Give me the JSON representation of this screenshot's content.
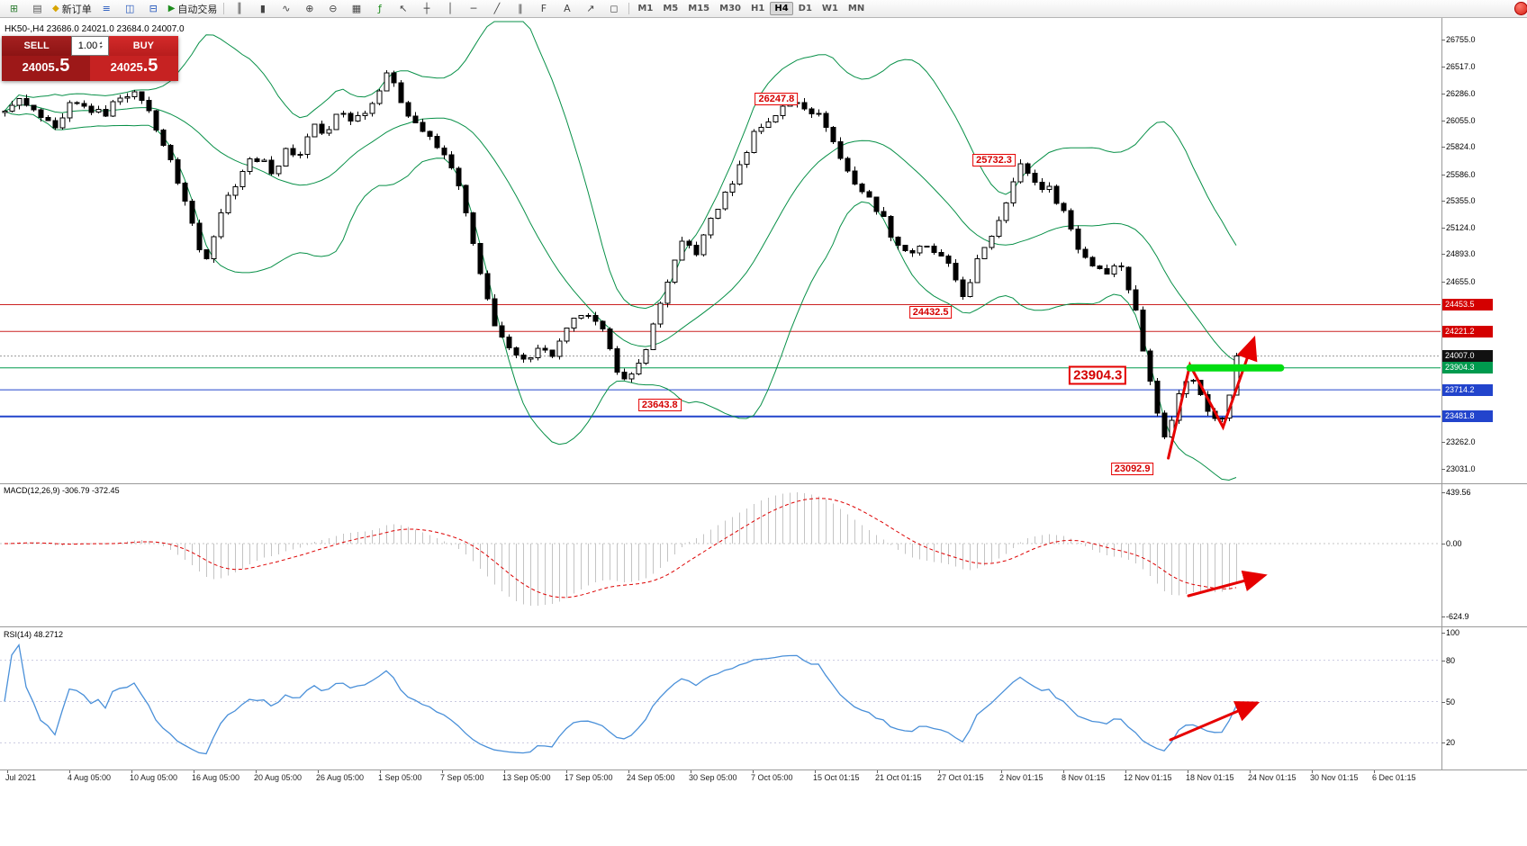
{
  "toolbar": {
    "left_icons": [
      {
        "name": "new-chart",
        "glyph": "⊞",
        "color": "#2e7d32"
      },
      {
        "name": "chart-profiles",
        "glyph": "▤",
        "color": "#555555"
      }
    ],
    "new_order_label": "新订单",
    "new_order_icon_glyph": "◆",
    "mid_icons": [
      {
        "name": "market-watch",
        "glyph": "≡",
        "color": "#2255bb"
      },
      {
        "name": "data-window",
        "glyph": "◫",
        "color": "#2255bb"
      },
      {
        "name": "navigator",
        "glyph": "⊟",
        "color": "#2255bb"
      }
    ],
    "auto_trading_label": "自动交易",
    "auto_trading_icon_glyph": "▶",
    "right_icons": [
      {
        "name": "bar-chart-mode",
        "glyph": "║",
        "color": "#444444"
      },
      {
        "name": "candlestick-mode",
        "glyph": "▮",
        "color": "#444444"
      },
      {
        "name": "line-chart-mode",
        "glyph": "∿",
        "color": "#444444"
      },
      {
        "name": "zoom-in",
        "glyph": "⊕",
        "color": "#444444"
      },
      {
        "name": "zoom-out",
        "glyph": "⊖",
        "color": "#444444"
      },
      {
        "name": "tile-windows",
        "glyph": "▦",
        "color": "#444444"
      },
      {
        "name": "indicators-list",
        "glyph": "ƒ",
        "color": "#1c8c1c"
      },
      {
        "name": "cursor-tool",
        "glyph": "↖",
        "color": "#444444"
      },
      {
        "name": "crosshair-tool",
        "glyph": "┼",
        "color": "#444444"
      },
      {
        "name": "vertical-line-tool",
        "glyph": "│",
        "color": "#444444"
      },
      {
        "name": "horizontal-line-tool",
        "glyph": "─",
        "color": "#444444"
      },
      {
        "name": "trendline-tool",
        "glyph": "╱",
        "color": "#444444"
      },
      {
        "name": "channel-tool",
        "glyph": "∥",
        "color": "#444444"
      },
      {
        "name": "fibonacci-tool",
        "glyph": "F",
        "color": "#444444"
      },
      {
        "name": "text-tool",
        "glyph": "A",
        "color": "#444444"
      },
      {
        "name": "arrow-tool",
        "glyph": "↗",
        "color": "#444444"
      },
      {
        "name": "shapes-tool",
        "glyph": "◻",
        "color": "#444444"
      }
    ],
    "timeframes": [
      "M1",
      "M5",
      "M15",
      "M30",
      "H1",
      "H4",
      "D1",
      "W1",
      "MN"
    ],
    "active_timeframe": "H4"
  },
  "trade_panel": {
    "sell_label": "SELL",
    "buy_label": "BUY",
    "volume": "1.00",
    "sell_price": "24005",
    "sell_price_big": ".5",
    "buy_price": "24025",
    "buy_price_big": ".5"
  },
  "chart_header": "HK50-,H4  23686.0 24021.0 23684.0 24007.0",
  "chart_data": [
    {
      "type": "candlestick",
      "symbol": "HK50-",
      "timeframe": "H4",
      "last_ohlc": {
        "open": 23686.0,
        "high": 24021.0,
        "low": 23684.0,
        "close": 24007.0
      },
      "ylim": [
        22950,
        26890
      ],
      "indicator": "Bollinger Bands (green)",
      "y_axis_ticks": [
        "26755.0",
        "26517.0",
        "26286.0",
        "26055.0",
        "25824.0",
        "25586.0",
        "25355.0",
        "25124.0",
        "24893.0",
        "24655.0",
        "23262.0",
        "23031.0"
      ],
      "x_axis_ticks": [
        "Jul 2021",
        "4 Aug 05:00",
        "10 Aug 05:00",
        "16 Aug 05:00",
        "20 Aug 05:00",
        "26 Aug 05:00",
        "1 Sep 05:00",
        "7 Sep 05:00",
        "13 Sep 05:00",
        "17 Sep 05:00",
        "24 Sep 05:00",
        "30 Sep 05:00",
        "7 Oct 05:00",
        "15 Oct 01:15",
        "21 Oct 01:15",
        "27 Oct 01:15",
        "2 Nov 01:15",
        "8 Nov 01:15",
        "12 Nov 01:15",
        "18 Nov 01:15",
        "24 Nov 01:15",
        "30 Nov 01:15",
        "6 Dec 01:15"
      ],
      "price_badges": [
        {
          "text": "24453.5",
          "color": "#d40000"
        },
        {
          "text": "24221.2",
          "color": "#d40000"
        },
        {
          "text": "24007.0",
          "color": "#111111"
        },
        {
          "text": "23904.3",
          "color": "#009a4e"
        },
        {
          "text": "23714.2",
          "color": "#2244cc"
        },
        {
          "text": "23481.8",
          "color": "#2244cc"
        }
      ],
      "horizontal_lines": [
        {
          "price": 24453.5,
          "color": "#cc2222",
          "width": 1,
          "style": "solid"
        },
        {
          "price": 24221.2,
          "color": "#cc2222",
          "width": 1,
          "style": "solid"
        },
        {
          "price": 24007.0,
          "color": "#999999",
          "width": 1,
          "style": "dotted"
        },
        {
          "price": 23904.3,
          "color": "#009a4e",
          "width": 1,
          "style": "solid"
        },
        {
          "price": 23714.2,
          "color": "#2244cc",
          "width": 1,
          "style": "solid"
        },
        {
          "price": 23481.8,
          "color": "#2244cc",
          "width": 2,
          "style": "solid"
        }
      ],
      "price_labels": [
        {
          "text": "26247.8",
          "x": 0.539,
          "price": 26240,
          "em": false
        },
        {
          "text": "25732.3",
          "x": 0.69,
          "price": 25708,
          "em": false
        },
        {
          "text": "24432.5",
          "x": 0.646,
          "price": 24390,
          "em": false
        },
        {
          "text": "23904.3",
          "x": 0.762,
          "price": 23840,
          "em": true
        },
        {
          "text": "23643.8",
          "x": 0.458,
          "price": 23580,
          "em": false
        },
        {
          "text": "23092.9",
          "x": 0.786,
          "price": 23030,
          "em": false
        }
      ],
      "drawings": [
        {
          "type": "polyline",
          "arrow": true,
          "color": "#e60000",
          "width": 3,
          "points": [
            [
              0.811,
              23120
            ],
            [
              0.826,
              23930
            ],
            [
              0.849,
              23390
            ],
            [
              0.87,
              24140
            ]
          ]
        },
        {
          "type": "polyline",
          "arrow": false,
          "color": "#00dd11",
          "width": 8,
          "points": [
            [
              0.826,
              23904.3
            ],
            [
              0.889,
              23904.3
            ]
          ]
        }
      ],
      "price_anchors": [
        [
          0.0,
          26050
        ],
        [
          0.01,
          26250
        ],
        [
          0.026,
          26100
        ],
        [
          0.039,
          25950
        ],
        [
          0.049,
          26200
        ],
        [
          0.062,
          26150
        ],
        [
          0.072,
          26100
        ],
        [
          0.085,
          26300
        ],
        [
          0.098,
          26250
        ],
        [
          0.108,
          26000
        ],
        [
          0.121,
          25600
        ],
        [
          0.131,
          25250
        ],
        [
          0.141,
          24800
        ],
        [
          0.154,
          25300
        ],
        [
          0.167,
          25600
        ],
        [
          0.176,
          25750
        ],
        [
          0.19,
          25600
        ],
        [
          0.199,
          25800
        ],
        [
          0.209,
          25750
        ],
        [
          0.216,
          26050
        ],
        [
          0.226,
          25900
        ],
        [
          0.235,
          26150
        ],
        [
          0.245,
          26050
        ],
        [
          0.258,
          26200
        ],
        [
          0.268,
          26480
        ],
        [
          0.275,
          26300
        ],
        [
          0.284,
          26100
        ],
        [
          0.294,
          25950
        ],
        [
          0.304,
          25800
        ],
        [
          0.314,
          25650
        ],
        [
          0.324,
          25200
        ],
        [
          0.333,
          24700
        ],
        [
          0.343,
          24300
        ],
        [
          0.353,
          24050
        ],
        [
          0.363,
          23950
        ],
        [
          0.373,
          24100
        ],
        [
          0.382,
          24000
        ],
        [
          0.392,
          24200
        ],
        [
          0.402,
          24380
        ],
        [
          0.412,
          24300
        ],
        [
          0.422,
          24150
        ],
        [
          0.428,
          23900
        ],
        [
          0.435,
          23750
        ],
        [
          0.444,
          23950
        ],
        [
          0.454,
          24300
        ],
        [
          0.464,
          24700
        ],
        [
          0.474,
          25000
        ],
        [
          0.484,
          24900
        ],
        [
          0.493,
          25200
        ],
        [
          0.503,
          25400
        ],
        [
          0.513,
          25650
        ],
        [
          0.523,
          25950
        ],
        [
          0.533,
          26050
        ],
        [
          0.542,
          26150
        ],
        [
          0.552,
          26230
        ],
        [
          0.562,
          26150
        ],
        [
          0.572,
          26050
        ],
        [
          0.582,
          25750
        ],
        [
          0.591,
          25550
        ],
        [
          0.601,
          25400
        ],
        [
          0.611,
          25250
        ],
        [
          0.621,
          25000
        ],
        [
          0.631,
          24900
        ],
        [
          0.641,
          24950
        ],
        [
          0.65,
          24900
        ],
        [
          0.66,
          24750
        ],
        [
          0.67,
          24500
        ],
        [
          0.68,
          24900
        ],
        [
          0.69,
          25100
        ],
        [
          0.699,
          25400
        ],
        [
          0.709,
          25680
        ],
        [
          0.719,
          25500
        ],
        [
          0.729,
          25450
        ],
        [
          0.739,
          25250
        ],
        [
          0.748,
          24950
        ],
        [
          0.758,
          24800
        ],
        [
          0.768,
          24750
        ],
        [
          0.778,
          24800
        ],
        [
          0.788,
          24400
        ],
        [
          0.794,
          24000
        ],
        [
          0.801,
          23700
        ],
        [
          0.807,
          23250
        ],
        [
          0.814,
          23500
        ],
        [
          0.82,
          23750
        ],
        [
          0.827,
          23850
        ],
        [
          0.833,
          23700
        ],
        [
          0.84,
          23500
        ],
        [
          0.846,
          23400
        ],
        [
          0.853,
          23650
        ],
        [
          0.86,
          23900
        ],
        [
          0.864,
          24007
        ]
      ]
    },
    {
      "type": "line",
      "name": "MACD",
      "label": "MACD(12,26,9) -306.79 -372.45",
      "params": [
        12,
        26,
        9
      ],
      "current_values": [
        -306.79,
        -372.45
      ],
      "y_axis_ticks": [
        "439.56",
        "0.00",
        "-624.9"
      ],
      "drawings": [
        {
          "type": "polyline",
          "arrow": true,
          "color": "#e60000",
          "width": 3,
          "points": [
            [
              1320,
              662
            ],
            [
              1402,
              640
            ]
          ]
        }
      ]
    },
    {
      "type": "line",
      "name": "RSI",
      "label": "RSI(14) 48.2712",
      "params": [
        14
      ],
      "current_value": 48.2712,
      "levels": [
        80,
        50,
        20
      ],
      "y_axis_ticks": [
        "100",
        "80",
        "50",
        "20"
      ],
      "drawings": [
        {
          "type": "polyline",
          "arrow": true,
          "color": "#e60000",
          "width": 3,
          "points": [
            [
              1300,
              822
            ],
            [
              1394,
              782
            ]
          ]
        }
      ]
    }
  ]
}
